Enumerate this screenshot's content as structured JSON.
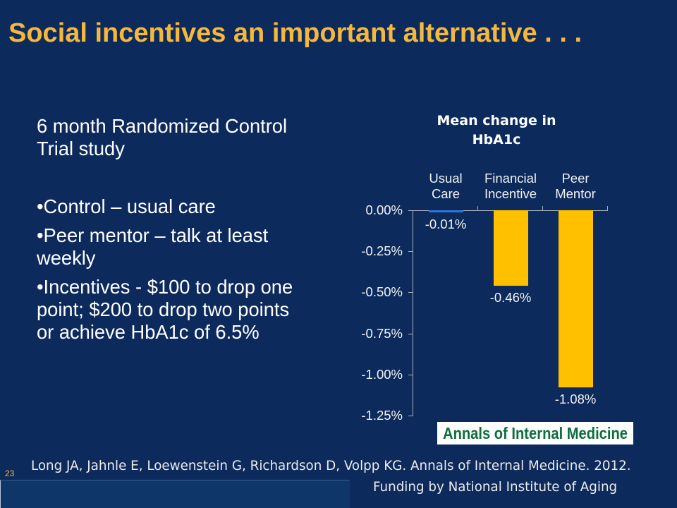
{
  "slide": {
    "title": "Social incentives an important alternative . . .",
    "slide_number": "23",
    "colors": {
      "background": "#0c2b5c",
      "title": "#f5b83d",
      "body_text": "#ffffff",
      "footer_bar": "#0e3669"
    }
  },
  "body": {
    "intro": "6 month Randomized Control Trial study",
    "bullets": [
      "•Control – usual care",
      "•Peer mentor – talk at least weekly",
      "•Incentives - $100 to drop one point; $200 to drop two points or achieve HbA1c of 6.5%"
    ]
  },
  "chart_data": {
    "type": "bar",
    "title": "Mean change in HbA1c",
    "categories": [
      "Usual Care",
      "Financial Incentive",
      "Peer Mentor"
    ],
    "values": [
      -0.01,
      -0.46,
      -1.08
    ],
    "data_labels": [
      "-0.01%",
      "-0.46%",
      "-1.08%"
    ],
    "bar_colors": [
      "#2e75d8",
      "#ffc000",
      "#ffc000"
    ],
    "ylim": [
      -1.25,
      0
    ],
    "yticks": [
      0,
      -0.25,
      -0.5,
      -0.75,
      -1.0,
      -1.25
    ],
    "ytick_labels": [
      "0.00%",
      "-0.25%",
      "-0.50%",
      "-0.75%",
      "-1.00%",
      "-1.25%"
    ],
    "grid": false
  },
  "logo": {
    "text": "Annals of Internal Medicine",
    "text_color": "#0c6e3b",
    "background": "#ffffff"
  },
  "footer": {
    "citation": "Long JA, Jahnle E, Loewenstein G, Richardson D, Volpp KG. Annals of Internal Medicine. 2012.",
    "funding": "Funding by National Institute of Aging"
  }
}
